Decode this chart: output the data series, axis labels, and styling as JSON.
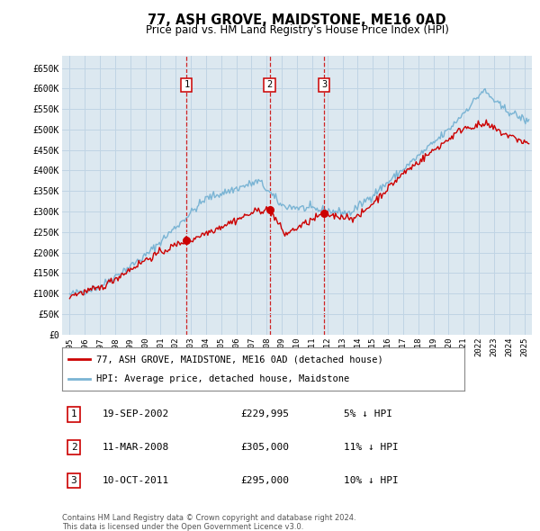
{
  "title": "77, ASH GROVE, MAIDSTONE, ME16 0AD",
  "subtitle": "Price paid vs. HM Land Registry's House Price Index (HPI)",
  "title_fontsize": 10.5,
  "subtitle_fontsize": 8.5,
  "xlim": [
    1994.5,
    2025.5
  ],
  "ylim": [
    0,
    680000
  ],
  "yticks": [
    0,
    50000,
    100000,
    150000,
    200000,
    250000,
    300000,
    350000,
    400000,
    450000,
    500000,
    550000,
    600000,
    650000
  ],
  "ytick_labels": [
    "£0",
    "£50K",
    "£100K",
    "£150K",
    "£200K",
    "£250K",
    "£300K",
    "£350K",
    "£400K",
    "£450K",
    "£500K",
    "£550K",
    "£600K",
    "£650K"
  ],
  "xticks": [
    1995,
    1996,
    1997,
    1998,
    1999,
    2000,
    2001,
    2002,
    2003,
    2004,
    2005,
    2006,
    2007,
    2008,
    2009,
    2010,
    2011,
    2012,
    2013,
    2014,
    2015,
    2016,
    2017,
    2018,
    2019,
    2020,
    2021,
    2022,
    2023,
    2024,
    2025
  ],
  "grid_color": "#c0d4e4",
  "bg_color": "#dce8f0",
  "hpi_color": "#7ab4d4",
  "sale_color": "#cc0000",
  "marker_color": "#cc0000",
  "vline_color": "#cc0000",
  "legend_label_sale": "77, ASH GROVE, MAIDSTONE, ME16 0AD (detached house)",
  "legend_label_hpi": "HPI: Average price, detached house, Maidstone",
  "transaction1_label": "1",
  "transaction1_date": "19-SEP-2002",
  "transaction1_price": "£229,995",
  "transaction1_pct": "5% ↓ HPI",
  "transaction1_year": 2002.72,
  "transaction1_value": 229995,
  "transaction2_label": "2",
  "transaction2_date": "11-MAR-2008",
  "transaction2_price": "£305,000",
  "transaction2_pct": "11% ↓ HPI",
  "transaction2_year": 2008.19,
  "transaction2_value": 305000,
  "transaction3_label": "3",
  "transaction3_date": "10-OCT-2011",
  "transaction3_price": "£295,000",
  "transaction3_pct": "10% ↓ HPI",
  "transaction3_year": 2011.78,
  "transaction3_value": 295000,
  "footnote1": "Contains HM Land Registry data © Crown copyright and database right 2024.",
  "footnote2": "This data is licensed under the Open Government Licence v3.0."
}
